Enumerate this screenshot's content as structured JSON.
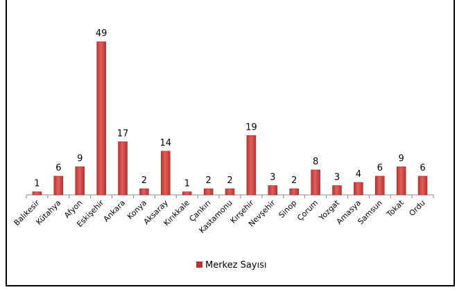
{
  "chart_data": {
    "type": "bar",
    "categories": [
      "Balıkesir",
      "Kütahya",
      "Afyon",
      "Eskişehir",
      "Ankara",
      "Konya",
      "Aksaray",
      "Kırıkkale",
      "Çankırı",
      "Kastamonu",
      "Kırşehir",
      "Nevşehir",
      "Sinop",
      "Çorum",
      "Yozgat",
      "Amasya",
      "Samsun",
      "Tokat",
      "Ordu"
    ],
    "series": [
      {
        "name": "Merkez Sayısı",
        "color": "#c0302f",
        "values": [
          1,
          6,
          9,
          49,
          17,
          2,
          14,
          1,
          2,
          2,
          19,
          3,
          2,
          8,
          3,
          4,
          6,
          9,
          6
        ]
      }
    ],
    "legend": "bottom"
  }
}
